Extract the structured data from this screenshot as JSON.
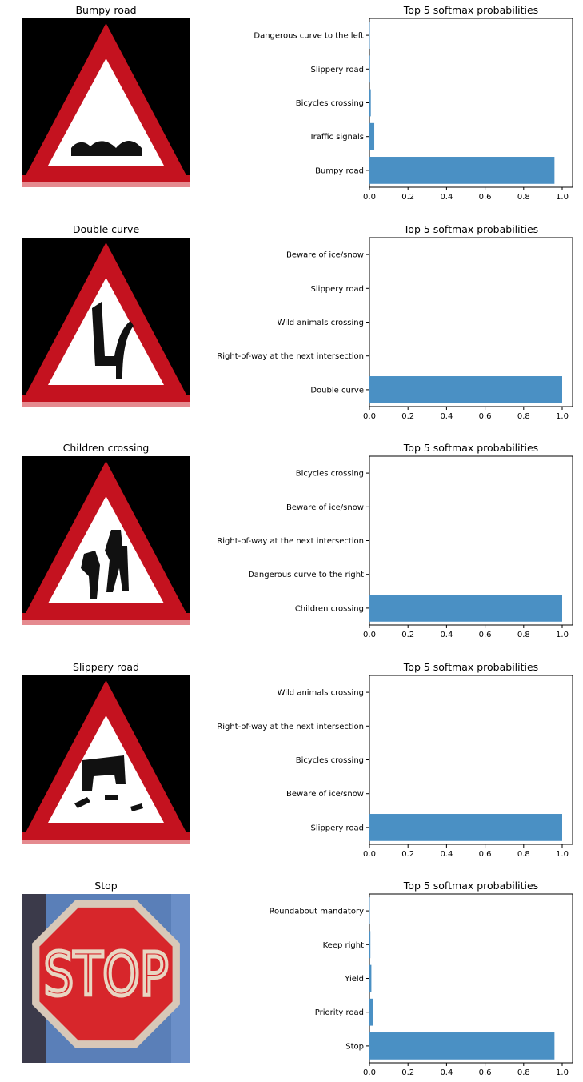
{
  "panels": [
    {
      "image_title": "Bumpy road",
      "sign": {
        "kind": "triangle",
        "symbol": "bumpy"
      },
      "chart_data": {
        "type": "bar",
        "orientation": "horizontal",
        "title": "Top 5 softmax probabilities",
        "categories": [
          "Bumpy road",
          "Traffic signals",
          "Bicycles crossing",
          "Slippery road",
          "Dangerous curve to the left"
        ],
        "values": [
          0.96,
          0.025,
          0.007,
          0.003,
          0.002
        ],
        "xlim": [
          0,
          0.96
        ],
        "xticks": [
          "0.0",
          "0.2",
          "0.4",
          "0.6",
          "0.8",
          "1.0"
        ],
        "bar_color": "#4a90c4"
      }
    },
    {
      "image_title": "Double curve",
      "sign": {
        "kind": "triangle",
        "symbol": "curve"
      },
      "chart_data": {
        "type": "bar",
        "orientation": "horizontal",
        "title": "Top 5 softmax probabilities",
        "categories": [
          "Double curve",
          "Right-of-way at the next intersection",
          "Wild animals crossing",
          "Slippery road",
          "Beware of ice/snow"
        ],
        "values": [
          1.0,
          0.0,
          0.0,
          0.0,
          0.0
        ],
        "xlim": [
          0,
          1.0
        ],
        "xticks": [
          "0.0",
          "0.2",
          "0.4",
          "0.6",
          "0.8",
          "1.0"
        ],
        "bar_color": "#4a90c4"
      }
    },
    {
      "image_title": "Children crossing",
      "sign": {
        "kind": "triangle",
        "symbol": "children"
      },
      "chart_data": {
        "type": "bar",
        "orientation": "horizontal",
        "title": "Top 5 softmax probabilities",
        "categories": [
          "Children crossing",
          "Dangerous curve to the right",
          "Right-of-way at the next intersection",
          "Beware of ice/snow",
          "Bicycles crossing"
        ],
        "values": [
          1.0,
          0.0,
          0.0,
          0.0,
          0.0
        ],
        "xlim": [
          0,
          1.0
        ],
        "xticks": [
          "0.0",
          "0.2",
          "0.4",
          "0.6",
          "0.8",
          "1.0"
        ],
        "bar_color": "#4a90c4"
      }
    },
    {
      "image_title": "Slippery road",
      "sign": {
        "kind": "triangle",
        "symbol": "slippery"
      },
      "chart_data": {
        "type": "bar",
        "orientation": "horizontal",
        "title": "Top 5 softmax probabilities",
        "categories": [
          "Slippery road",
          "Beware of ice/snow",
          "Bicycles crossing",
          "Right-of-way at the next intersection",
          "Wild animals crossing"
        ],
        "values": [
          1.0,
          0.0,
          0.0,
          0.0,
          0.0
        ],
        "xlim": [
          0,
          1.0
        ],
        "xticks": [
          "0.0",
          "0.2",
          "0.4",
          "0.6",
          "0.8",
          "1.0"
        ],
        "bar_color": "#4a90c4"
      }
    },
    {
      "image_title": "Stop",
      "sign": {
        "kind": "octagon",
        "text": "STOP"
      },
      "chart_data": {
        "type": "bar",
        "orientation": "horizontal",
        "title": "Top 5 softmax probabilities",
        "categories": [
          "Stop",
          "Priority road",
          "Yield",
          "Keep right",
          "Roundabout mandatory"
        ],
        "values": [
          0.96,
          0.02,
          0.01,
          0.005,
          0.002
        ],
        "xlim": [
          0,
          0.96
        ],
        "xticks": [
          "0.0",
          "0.2",
          "0.4",
          "0.6",
          "0.8",
          "1.0"
        ],
        "bar_color": "#4a90c4"
      }
    }
  ]
}
